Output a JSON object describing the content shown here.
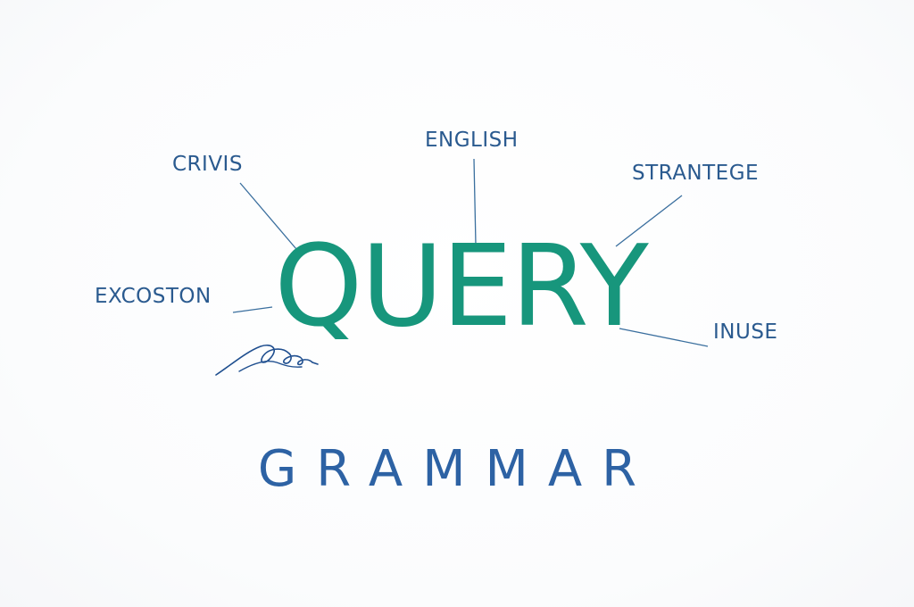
{
  "diagram": {
    "main_word": "QUERY",
    "sub_word": "GRAMMAR",
    "terms": {
      "crivis": "CRIVIS",
      "english": "ENGLISH",
      "strantege": "STRANTEGE",
      "excoston": "EXCOSTON",
      "inuse": "INUSE"
    }
  },
  "colors": {
    "main_word": "#17967c",
    "sub_word": "#2d62a4",
    "terms": "#2a5a8f",
    "connectors": "#3a6f9e",
    "flourish": "#1f4f8f"
  }
}
